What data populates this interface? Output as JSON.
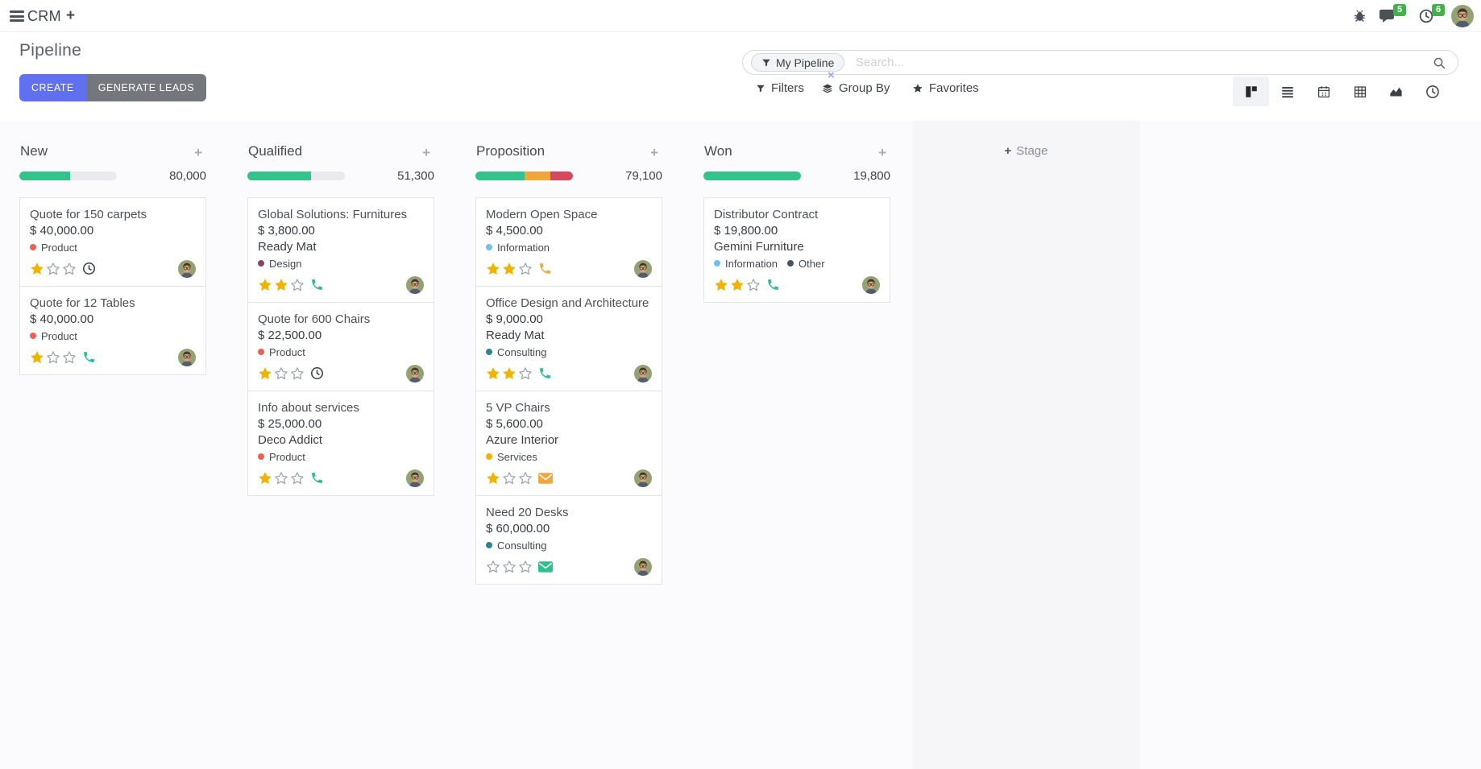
{
  "navbar": {
    "app_name": "CRM",
    "messages_badge": "5",
    "activities_badge": "6"
  },
  "control": {
    "title": "Pipeline",
    "create_label": "CREATE",
    "generate_label": "GENERATE LEADS",
    "search": {
      "facet": "My Pipeline",
      "facet_remove": "×",
      "placeholder": "Search..."
    },
    "menus": [
      {
        "label": "Filters"
      },
      {
        "label": "Group By"
      },
      {
        "label": "Favorites"
      }
    ],
    "views": [
      "kanban",
      "list",
      "calendar",
      "pivot",
      "graph",
      "activity"
    ],
    "active_view": "kanban"
  },
  "board": {
    "stage_adder": "Stage",
    "columns": [
      {
        "name": "New",
        "total": "80,000",
        "progress": [
          {
            "color": "#34c38a",
            "pct": 52
          }
        ],
        "cards": [
          {
            "title": "Quote for 150 carpets",
            "amount": "$ 40,000.00",
            "tags": [
              {
                "label": "Product",
                "color": "#f06050"
              }
            ],
            "rating": 1,
            "activity": {
              "icon": "clock-icon",
              "color": "#3a4047"
            }
          },
          {
            "title": "Quote for 12 Tables",
            "amount": "$ 40,000.00",
            "tags": [
              {
                "label": "Product",
                "color": "#f06050"
              }
            ],
            "rating": 1,
            "activity": {
              "icon": "phone-icon",
              "color": "#2abf94"
            }
          }
        ]
      },
      {
        "name": "Qualified",
        "total": "51,300",
        "progress": [
          {
            "color": "#34c38a",
            "pct": 65
          }
        ],
        "cards": [
          {
            "title": "Global Solutions: Furnitures",
            "amount": "$ 3,800.00",
            "company": "Ready Mat",
            "tags": [
              {
                "label": "Design",
                "color": "#814968"
              }
            ],
            "rating": 2,
            "activity": {
              "icon": "phone-icon",
              "color": "#2abf94"
            }
          },
          {
            "title": "Quote for 600 Chairs",
            "amount": "$ 22,500.00",
            "tags": [
              {
                "label": "Product",
                "color": "#f06050"
              }
            ],
            "rating": 1,
            "activity": {
              "icon": "clock-icon",
              "color": "#3a4047"
            }
          },
          {
            "title": "Info about services",
            "amount": "$ 25,000.00",
            "company": "Deco Addict",
            "tags": [
              {
                "label": "Product",
                "color": "#f06050"
              }
            ],
            "rating": 1,
            "activity": {
              "icon": "phone-icon",
              "color": "#2abf94"
            }
          }
        ]
      },
      {
        "name": "Proposition",
        "total": "79,100",
        "progress": [
          {
            "color": "#34c38a",
            "pct": 50
          },
          {
            "color": "#f0a63a",
            "pct": 27
          },
          {
            "color": "#d5495e",
            "pct": 23
          }
        ],
        "cards": [
          {
            "title": "Modern Open Space",
            "amount": "$ 4,500.00",
            "tags": [
              {
                "label": "Information",
                "color": "#6cc1ed"
              }
            ],
            "rating": 2,
            "activity": {
              "icon": "phone-icon",
              "color": "#f0a63c"
            }
          },
          {
            "title": "Office Design and Architecture",
            "amount": "$ 9,000.00",
            "company": "Ready Mat",
            "tags": [
              {
                "label": "Consulting",
                "color": "#2c8397"
              }
            ],
            "rating": 2,
            "activity": {
              "icon": "phone-icon",
              "color": "#2abf94"
            }
          },
          {
            "title": "5 VP Chairs",
            "amount": "$ 5,600.00",
            "company": "Azure Interior",
            "tags": [
              {
                "label": "Services",
                "color": "#efb300"
              }
            ],
            "rating": 1,
            "activity": {
              "icon": "mail-icon",
              "color": "#f0a63c"
            }
          },
          {
            "title": "Need 20 Desks",
            "amount": "$ 60,000.00",
            "tags": [
              {
                "label": "Consulting",
                "color": "#2c8397"
              }
            ],
            "rating": 0,
            "activity": {
              "icon": "mail-icon",
              "color": "#2fbf8a"
            }
          }
        ]
      },
      {
        "name": "Won",
        "total": "19,800",
        "progress": [
          {
            "color": "#34c38a",
            "pct": 100
          }
        ],
        "cards": [
          {
            "title": "Distributor Contract",
            "amount": "$ 19,800.00",
            "company": "Gemini Furniture",
            "tags": [
              {
                "label": "Information",
                "color": "#6cc1ed"
              },
              {
                "label": "Other",
                "color": "#475263"
              }
            ],
            "rating": 2,
            "activity": {
              "icon": "phone-icon",
              "color": "#2abf94"
            }
          }
        ]
      }
    ]
  },
  "colors": {
    "accent": "#6170ee",
    "secondary_button": "#75777f",
    "badge_green": "#43b14b",
    "progress_green": "#34c38a",
    "progress_yellow": "#f0a63a",
    "progress_red": "#d5495e",
    "star_gold": "#efb400",
    "icon_dark": "#4a5158"
  }
}
